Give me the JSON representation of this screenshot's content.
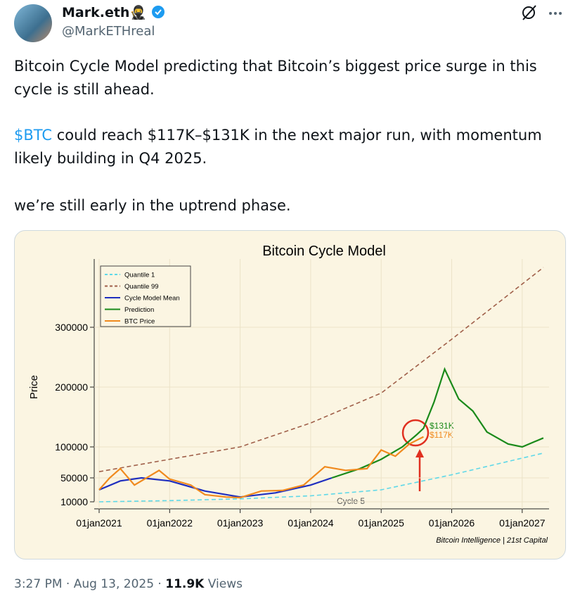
{
  "header": {
    "name": "Mark.eth🥷",
    "handle": "@MarkETHreal"
  },
  "tweet": {
    "paragraphs": [
      "Bitcoin Cycle Model predicting that Bitcoin’s biggest price surge in this cycle is still ahead.",
      "could reach $117K–$131K in the next major run, with momentum likely building in Q4 2025.",
      "we’re still early in the uptrend phase."
    ],
    "cashtag": "$BTC"
  },
  "chart_data": {
    "type": "line",
    "title": "Bitcoin Cycle Model",
    "y_label": "Price",
    "xlim": [
      2020.8,
      2027.4
    ],
    "xticks": [
      {
        "value": 2021,
        "label": "01jan2021"
      },
      {
        "value": 2022,
        "label": "01jan2022"
      },
      {
        "value": 2023,
        "label": "01jan2023"
      },
      {
        "value": 2024,
        "label": "01jan2024"
      },
      {
        "value": 2025,
        "label": "01jan2025"
      },
      {
        "value": 2026,
        "label": "01jan2026"
      },
      {
        "value": 2027,
        "label": "01jan2027"
      }
    ],
    "ylim": [
      10000,
      400000
    ],
    "yticks": [
      10000,
      50000,
      100000,
      200000,
      300000
    ],
    "grid": true,
    "legend": "upper left",
    "series": [
      {
        "name": "Quantile 1",
        "color": "#5fd8e8",
        "style": "dashed",
        "x": [
          2021,
          2022,
          2023,
          2024,
          2025,
          2026,
          2027.3
        ],
        "values": [
          10000,
          12000,
          15000,
          20000,
          30000,
          55000,
          90000
        ]
      },
      {
        "name": "Quantile 99",
        "color": "#a0604a",
        "style": "dashed",
        "x": [
          2021,
          2022,
          2023,
          2024,
          2025,
          2026,
          2027.3
        ],
        "values": [
          60000,
          80000,
          100000,
          140000,
          190000,
          280000,
          400000
        ]
      },
      {
        "name": "Cycle Model Mean",
        "color": "#1f2fbf",
        "style": "solid",
        "x": [
          2021,
          2021.3,
          2021.6,
          2022,
          2022.5,
          2023,
          2023.5,
          2024,
          2024.3
        ],
        "values": [
          30000,
          45000,
          50000,
          45000,
          28000,
          18000,
          25000,
          38000,
          50000
        ]
      },
      {
        "name": "Prediction",
        "color": "#1a8a1a",
        "style": "solid",
        "x": [
          2024.3,
          2024.7,
          2025,
          2025.3,
          2025.5,
          2025.6,
          2025.75,
          2025.9,
          2026.1,
          2026.3,
          2026.5,
          2026.8,
          2027,
          2027.3
        ],
        "values": [
          50000,
          65000,
          80000,
          100000,
          120000,
          131000,
          175000,
          230000,
          180000,
          160000,
          125000,
          105000,
          100000,
          115000
        ]
      },
      {
        "name": "BTC Price",
        "color": "#f08a1e",
        "style": "solid",
        "x": [
          2021,
          2021.15,
          2021.3,
          2021.5,
          2021.85,
          2022,
          2022.3,
          2022.5,
          2022.8,
          2023,
          2023.3,
          2023.6,
          2023.9,
          2024.2,
          2024.5,
          2024.8,
          2025,
          2025.2,
          2025.4,
          2025.6
        ],
        "values": [
          30000,
          50000,
          65000,
          38000,
          62000,
          48000,
          38000,
          22000,
          18000,
          17000,
          28000,
          29000,
          38000,
          68000,
          62000,
          65000,
          95000,
          85000,
          105000,
          117000
        ]
      }
    ],
    "annotations": [
      "$131K",
      "$117K",
      "Cycle 5"
    ],
    "credit": "Bitcoin Intelligence | 21st Capital"
  },
  "footer": {
    "time": "3:27 PM · Aug 13, 2025 · ",
    "views": "11.9K",
    "views_label": " Views"
  }
}
